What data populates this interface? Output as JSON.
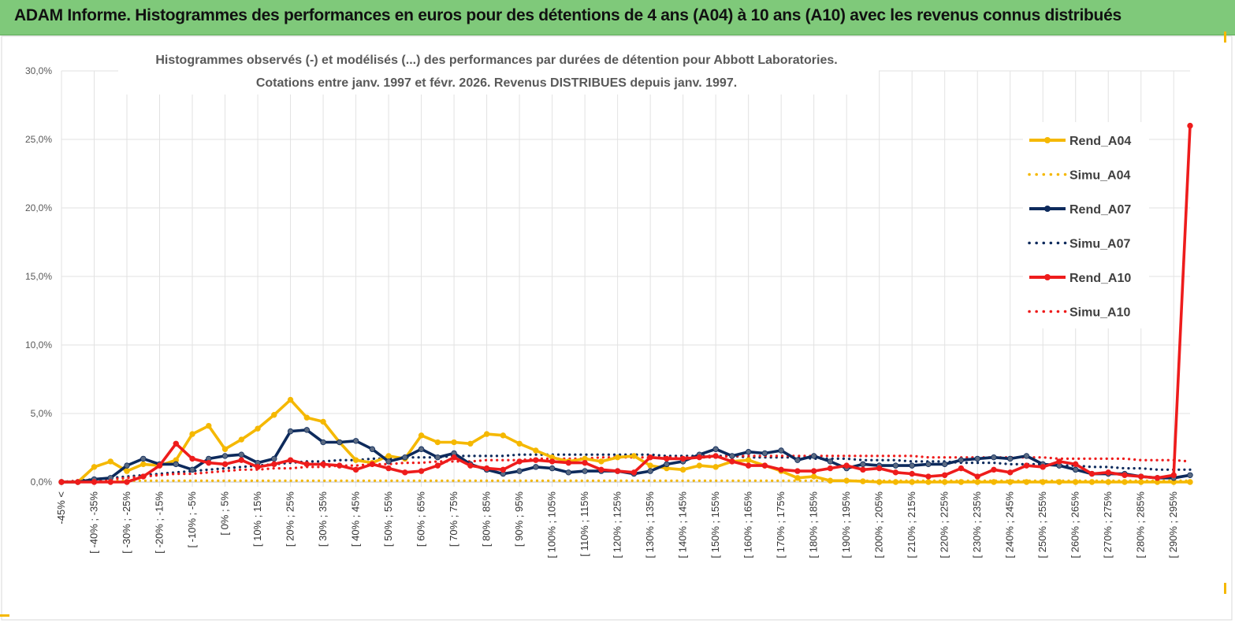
{
  "header": {
    "title": "ADAM Informe. Histogrammes des performances en euros pour des détentions de 4 ans (A04) à 10 ans (A10) avec les revenus connus distribués"
  },
  "chart_data": {
    "type": "line",
    "title": "Histogrammes observés (-) et modélisés (...) des performances par durées de détention pour Abbott Laboratories.",
    "subtitle": "Cotations entre janv. 1997 et févr. 2026. Revenus DISTRIBUES depuis janv. 1997.",
    "xlabel": "",
    "ylabel": "",
    "ylim": [
      0,
      30
    ],
    "y_ticks": [
      "0,0%",
      "5,0%",
      "10,0%",
      "15,0%",
      "20,0%",
      "25,0%",
      "30,0%"
    ],
    "y_tick_values": [
      0,
      5,
      10,
      15,
      20,
      25,
      30
    ],
    "grid": true,
    "legend_position": "right",
    "categories": [
      "-45% <",
      "[ -45% ; -40%",
      "[ -40% ; -35%",
      "[ -35% ; -30%",
      "[ -30% ; -25%",
      "[ -25% ; -20%",
      "[ -20% ; -15%",
      "[ -15% ; -10%",
      "[ -10% ; -5%",
      "[ -5% ; 0%",
      "[ 0% ; 5%",
      "[ 5% ; 10%",
      "[ 10% ; 15%",
      "[ 15% ; 20%",
      "[ 20% ; 25%",
      "[ 25% ; 30%",
      "[ 30% ; 35%",
      "[ 35% ; 40%",
      "[ 40% ; 45%",
      "[ 45% ; 50%",
      "[ 50% ; 55%",
      "[ 55% ; 60%",
      "[ 60% ; 65%",
      "[ 65% ; 70%",
      "[ 70% ; 75%",
      "[ 75% ; 80%",
      "[ 80% ; 85%",
      "[ 85% ; 90%",
      "[ 90% ; 95%",
      "[ 95% ; 100%",
      "[ 100% ; 105%",
      "[ 105% ; 110%",
      "[ 110% ; 115%",
      "[ 115% ; 120%",
      "[ 120% ; 125%",
      "[ 125% ; 130%",
      "[ 130% ; 135%",
      "[ 135% ; 140%",
      "[ 140% ; 145%",
      "[ 145% ; 150%",
      "[ 150% ; 155%",
      "[ 155% ; 160%",
      "[ 160% ; 165%",
      "[ 165% ; 170%",
      "[ 170% ; 175%",
      "[ 175% ; 180%",
      "[ 180% ; 185%",
      "[ 185% ; 190%",
      "[ 190% ; 195%",
      "[ 195% ; 200%",
      "[ 200% ; 205%",
      "[ 205% ; 210%",
      "[ 210% ; 215%",
      "[ 215% ; 220%",
      "[ 220% ; 225%",
      "[ 225% ; 230%",
      "[ 230% ; 235%",
      "[ 235% ; 240%",
      "[ 240% ; 245%",
      "[ 245% ; 250%",
      "[ 250% ; 255%",
      "[ 255% ; 260%",
      "[ 260% ; 265%",
      "[ 265% ; 270%",
      "[ 270% ; 275%",
      "[ 275% ; 280%",
      "[ 280% ; 285%",
      "[ 285% ; 290%",
      "[ 290% ; 295%",
      "[ 295% ; 300%"
    ],
    "series": [
      {
        "name": "Rend_A04",
        "style": "solid",
        "color": "#f5b800",
        "values": [
          0,
          0,
          1.1,
          1.5,
          0.8,
          1.3,
          1.2,
          1.6,
          3.5,
          4.1,
          2.4,
          3.1,
          3.9,
          4.9,
          6.0,
          4.7,
          4.4,
          2.9,
          1.6,
          1.4,
          1.9,
          1.7,
          3.4,
          2.9,
          2.9,
          2.8,
          3.5,
          3.4,
          2.8,
          2.3,
          1.8,
          1.5,
          1.7,
          1.5,
          1.8,
          1.9,
          1.2,
          1.0,
          0.9,
          1.2,
          1.1,
          1.5,
          1.6,
          1.2,
          0.8,
          0.3,
          0.4,
          0.1,
          0.1,
          0.05,
          0,
          0,
          0,
          0,
          0,
          0,
          0,
          0,
          0,
          0,
          0,
          0,
          0,
          0,
          0,
          0,
          0,
          0,
          0,
          0
        ]
      },
      {
        "name": "Simu_A04",
        "style": "dotted",
        "color": "#f5b800",
        "values": [
          0,
          0,
          0.1,
          0.1,
          0.1,
          0.1,
          0.1,
          0.1,
          0.1,
          0.1,
          0.1,
          0.1,
          0.1,
          0.1,
          0.1,
          0.1,
          0.1,
          0.1,
          0.1,
          0.1,
          0.1,
          0.1,
          0.1,
          0.1,
          0.1,
          0.1,
          0.1,
          0.1,
          0.1,
          0.1,
          0.1,
          0.1,
          0.1,
          0.1,
          0.1,
          0.1,
          0.1,
          0.1,
          0.1,
          0.1,
          0.1,
          0.1,
          0.1,
          0.1,
          0.1,
          0.1,
          0.1,
          0.1,
          0.1,
          0.1,
          0.1,
          0.1,
          0.1,
          0.1,
          0.1,
          0.1,
          0.1,
          0.1,
          0.1,
          0.1,
          0.1,
          0.1,
          0.1,
          0.1,
          0.1,
          0.1,
          0.1,
          0.1,
          0.1,
          0.1
        ]
      },
      {
        "name": "Rend_A07",
        "style": "solid",
        "color": "#0d2a5c",
        "values": [
          0,
          0,
          0.2,
          0.3,
          1.2,
          1.7,
          1.3,
          1.3,
          0.9,
          1.7,
          1.9,
          2.0,
          1.4,
          1.7,
          3.7,
          3.8,
          2.9,
          2.9,
          3.0,
          2.4,
          1.5,
          1.8,
          2.4,
          1.8,
          2.1,
          1.3,
          0.9,
          0.6,
          0.8,
          1.1,
          1.0,
          0.7,
          0.8,
          0.8,
          0.8,
          0.6,
          0.8,
          1.3,
          1.5,
          2.0,
          2.4,
          1.9,
          2.2,
          2.1,
          2.3,
          1.6,
          1.9,
          1.5,
          1.0,
          1.3,
          1.2,
          1.2,
          1.2,
          1.3,
          1.3,
          1.6,
          1.7,
          1.8,
          1.7,
          1.9,
          1.3,
          1.2,
          0.9,
          0.6,
          0.6,
          0.6,
          0.4,
          0.3,
          0.3,
          0.5
        ]
      },
      {
        "name": "Simu_A07",
        "style": "dotted",
        "color": "#0d2a5c",
        "values": [
          0,
          0.1,
          0.2,
          0.3,
          0.4,
          0.5,
          0.6,
          0.7,
          0.8,
          0.9,
          1.0,
          1.1,
          1.2,
          1.3,
          1.4,
          1.5,
          1.5,
          1.6,
          1.6,
          1.7,
          1.7,
          1.8,
          1.8,
          1.8,
          1.9,
          1.9,
          1.9,
          1.9,
          2.0,
          2.0,
          2.0,
          2.0,
          2.0,
          2.0,
          2.0,
          2.0,
          2.0,
          1.9,
          1.9,
          1.9,
          1.9,
          1.9,
          1.8,
          1.8,
          1.8,
          1.8,
          1.7,
          1.7,
          1.7,
          1.6,
          1.6,
          1.6,
          1.5,
          1.5,
          1.5,
          1.4,
          1.4,
          1.4,
          1.3,
          1.3,
          1.3,
          1.2,
          1.2,
          1.1,
          1.1,
          1.0,
          1.0,
          0.9,
          0.9,
          0.9
        ]
      },
      {
        "name": "Rend_A10",
        "style": "solid",
        "color": "#ee1c1c",
        "values": [
          0,
          0,
          0,
          0,
          0,
          0.4,
          1.2,
          2.8,
          1.7,
          1.4,
          1.3,
          1.6,
          1.1,
          1.3,
          1.6,
          1.3,
          1.3,
          1.2,
          0.9,
          1.3,
          1.0,
          0.7,
          0.8,
          1.2,
          1.8,
          1.2,
          1.0,
          0.9,
          1.5,
          1.6,
          1.5,
          1.4,
          1.4,
          0.9,
          0.8,
          0.7,
          1.8,
          1.7,
          1.7,
          1.8,
          1.9,
          1.5,
          1.2,
          1.2,
          0.9,
          0.8,
          0.8,
          1.0,
          1.2,
          0.9,
          1.0,
          0.7,
          0.6,
          0.4,
          0.5,
          1.0,
          0.4,
          0.9,
          0.7,
          1.2,
          1.1,
          1.5,
          1.3,
          0.6,
          0.7,
          0.5,
          0.4,
          0.3,
          0.5,
          26.0
        ]
      },
      {
        "name": "Simu_A10",
        "style": "dotted",
        "color": "#ee1c1c",
        "values": [
          0,
          0.1,
          0.1,
          0.2,
          0.3,
          0.4,
          0.5,
          0.6,
          0.6,
          0.7,
          0.8,
          0.9,
          0.9,
          1.0,
          1.0,
          1.1,
          1.1,
          1.2,
          1.2,
          1.3,
          1.3,
          1.4,
          1.4,
          1.5,
          1.5,
          1.5,
          1.6,
          1.6,
          1.6,
          1.7,
          1.7,
          1.7,
          1.7,
          1.8,
          1.8,
          1.8,
          1.8,
          1.8,
          1.8,
          1.8,
          1.8,
          1.9,
          1.9,
          1.9,
          1.9,
          1.9,
          1.9,
          1.9,
          1.9,
          1.9,
          1.9,
          1.9,
          1.9,
          1.8,
          1.8,
          1.8,
          1.8,
          1.8,
          1.8,
          1.8,
          1.8,
          1.7,
          1.7,
          1.7,
          1.7,
          1.7,
          1.6,
          1.6,
          1.6,
          1.5
        ]
      }
    ]
  }
}
